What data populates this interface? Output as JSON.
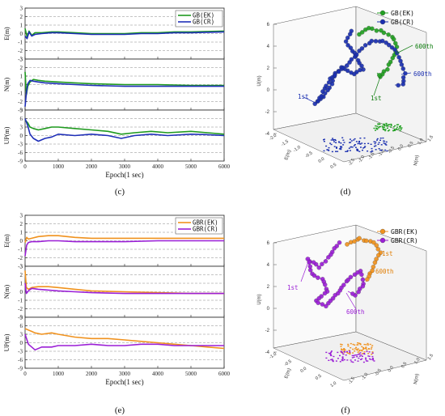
{
  "figure": {
    "panel_labels": [
      "(c)",
      "(d)",
      "(e)",
      "(f)"
    ]
  },
  "chart_data": [
    {
      "type": "line",
      "panel": "(c)",
      "xlabel": "Epoch(1 sec)",
      "x_ticks": [
        0,
        1000,
        2000,
        3000,
        4000,
        5000,
        6000
      ],
      "xlim": [
        0,
        6000
      ],
      "grid": "dashed horizontal",
      "legend": "top-right",
      "series_names": [
        "GB(EK)",
        "GB(CR)"
      ],
      "series_colors": [
        "#1f9a1f",
        "#1f2fb8"
      ],
      "subplots": [
        {
          "ylabel": "E(m)",
          "ylim": [
            -3,
            3
          ],
          "y_ticks": [
            "3",
            "2",
            "1",
            "0",
            "-1",
            "-2",
            "-3"
          ],
          "series": [
            {
              "name": "GB(EK)",
              "x": [
                0,
                60,
                120,
                200,
                300,
                500,
                800,
                1000,
                1500,
                2000,
                2500,
                3000,
                3500,
                4000,
                4500,
                5000,
                5500,
                6000
              ],
              "values": [
                0.6,
                -0.4,
                0.3,
                -0.2,
                0.1,
                0.1,
                0.2,
                0.2,
                0.1,
                0.0,
                0.0,
                0.0,
                0.1,
                0.1,
                0.2,
                0.2,
                0.25,
                0.3
              ]
            },
            {
              "name": "GB(CR)",
              "x": [
                0,
                60,
                120,
                200,
                300,
                500,
                800,
                1000,
                1500,
                2000,
                2500,
                3000,
                3500,
                4000,
                4500,
                5000,
                5500,
                6000
              ],
              "values": [
                -0.3,
                -0.6,
                0.2,
                -0.3,
                -0.1,
                0.0,
                0.1,
                0.1,
                0.0,
                -0.1,
                -0.1,
                -0.1,
                0.0,
                0.0,
                0.1,
                0.1,
                0.15,
                0.2
              ]
            }
          ]
        },
        {
          "ylabel": "N(m)",
          "ylim": [
            -3,
            3
          ],
          "y_ticks": [
            "3",
            "2",
            "1",
            "0",
            "-1",
            "-2",
            "-3"
          ],
          "series": [
            {
              "name": "GB(EK)",
              "x": [
                0,
                40,
                80,
                150,
                250,
                400,
                600,
                1000,
                1500,
                2000,
                3000,
                4000,
                5000,
                6000
              ],
              "values": [
                1.5,
                -1.2,
                -0.2,
                0.3,
                0.6,
                0.5,
                0.4,
                0.3,
                0.2,
                0.1,
                0.0,
                0.0,
                -0.1,
                -0.1
              ]
            },
            {
              "name": "GB(CR)",
              "x": [
                0,
                40,
                80,
                150,
                250,
                400,
                600,
                1000,
                1500,
                2000,
                3000,
                4000,
                5000,
                6000
              ],
              "values": [
                -2.6,
                -1.0,
                0.1,
                0.5,
                0.4,
                0.3,
                0.2,
                0.1,
                0.0,
                -0.1,
                -0.2,
                -0.2,
                -0.2,
                -0.2
              ]
            }
          ]
        },
        {
          "ylabel": "UP(m)",
          "ylim": [
            -9,
            9
          ],
          "y_ticks": [
            "9",
            "6",
            "3",
            "0",
            "-3",
            "-6",
            "-9"
          ],
          "series": [
            {
              "name": "GB(EK)",
              "x": [
                0,
                80,
                150,
                250,
                400,
                600,
                800,
                1000,
                1500,
                2000,
                2500,
                2900,
                3300,
                3800,
                4300,
                5000,
                5500,
                6000
              ],
              "values": [
                5.5,
                4.5,
                3.0,
                2.5,
                2.0,
                2.5,
                3.0,
                3.0,
                2.5,
                2.0,
                1.5,
                0.5,
                1.0,
                1.5,
                1.0,
                1.5,
                1.0,
                0.5
              ]
            },
            {
              "name": "GB(CR)",
              "x": [
                0,
                80,
                150,
                250,
                400,
                600,
                800,
                1000,
                1500,
                2000,
                2500,
                2900,
                3300,
                3800,
                4300,
                5000,
                5500,
                6000
              ],
              "values": [
                6.0,
                3.5,
                0.5,
                -1.0,
                -2.0,
                -1.0,
                -0.5,
                0.5,
                0.0,
                0.5,
                0.0,
                -1.0,
                0.0,
                0.5,
                0.0,
                0.5,
                0.3,
                0.0
              ]
            }
          ]
        }
      ]
    },
    {
      "type": "scatter",
      "panel": "(d)",
      "dimensions": 3,
      "axis_labels": {
        "z": "U(m)",
        "x": "E(m)",
        "y": "N(m)"
      },
      "z_ticks": [
        "6",
        "4",
        "2",
        "0",
        "-2",
        "-4"
      ],
      "x_ticks": [
        "-2.0",
        "-1.5",
        "-1.0",
        "-0.5",
        "0.0",
        "0.5"
      ],
      "y_ticks": [
        "-2.5",
        "-2.0",
        "-1.5",
        "-1.0",
        "-0.5",
        "0.0",
        "0.5",
        "1.0",
        "1.5"
      ],
      "legend": "top-right",
      "series_names": [
        "GB(EK)",
        "GB(CR)"
      ],
      "series_colors": [
        "#22a022",
        "#1a2fb0"
      ],
      "annotations": [
        {
          "text": "600th",
          "color": "#0a7a0a"
        },
        {
          "text": "600th",
          "color": "#1a2fb0"
        },
        {
          "text": "1st",
          "color": "#0a7a0a"
        },
        {
          "text": "1st",
          "color": "#1a2fb0"
        }
      ]
    },
    {
      "type": "line",
      "panel": "(e)",
      "xlabel": "Epoch(1 sec)",
      "x_ticks": [
        0,
        1000,
        2000,
        3000,
        4000,
        5000,
        6000
      ],
      "xlim": [
        0,
        6000
      ],
      "grid": "dashed horizontal",
      "legend": "top-right",
      "series_names": [
        "GBR(EK)",
        "GBR(CR)"
      ],
      "series_colors": [
        "#f0921e",
        "#9b1fd6"
      ],
      "subplots": [
        {
          "ylabel": "E(m)",
          "ylim": [
            -3,
            3
          ],
          "y_ticks": [
            "3",
            "2",
            "1",
            "0",
            "-1",
            "-2",
            "-3"
          ],
          "series": [
            {
              "name": "GBR(EK)",
              "x": [
                0,
                50,
                100,
                200,
                400,
                700,
                1000,
                1500,
                2000,
                3000,
                4000,
                5000,
                6000
              ],
              "values": [
                -0.2,
                0.4,
                0.2,
                0.3,
                0.5,
                0.6,
                0.6,
                0.4,
                0.3,
                0.3,
                0.3,
                0.3,
                0.3
              ]
            },
            {
              "name": "GBR(CR)",
              "x": [
                0,
                50,
                100,
                200,
                400,
                700,
                1000,
                1500,
                2000,
                3000,
                4000,
                5000,
                6000
              ],
              "values": [
                -1.8,
                -0.5,
                -0.2,
                -0.1,
                -0.1,
                0.0,
                0.0,
                -0.1,
                -0.1,
                -0.1,
                0.0,
                0.0,
                0.0
              ]
            }
          ]
        },
        {
          "ylabel": "N(m)",
          "ylim": [
            -3,
            3
          ],
          "y_ticks": [
            "3",
            "2",
            "1",
            "0",
            "-1",
            "-2",
            "-3"
          ],
          "series": [
            {
              "name": "GBR(EK)",
              "x": [
                0,
                40,
                100,
                200,
                400,
                700,
                1000,
                1500,
                2000,
                3000,
                4000,
                5000,
                6000
              ],
              "values": [
                2.5,
                0.5,
                0.3,
                0.5,
                0.6,
                0.6,
                0.5,
                0.3,
                0.1,
                0.0,
                -0.1,
                -0.2,
                -0.2
              ]
            },
            {
              "name": "GBR(CR)",
              "x": [
                0,
                40,
                100,
                200,
                400,
                700,
                1000,
                1500,
                2000,
                3000,
                4000,
                5000,
                6000
              ],
              "values": [
                1.0,
                -0.2,
                0.1,
                0.4,
                0.3,
                0.2,
                0.1,
                0.0,
                -0.1,
                -0.2,
                -0.2,
                -0.2,
                -0.2
              ]
            }
          ]
        },
        {
          "ylabel": "UP(m)",
          "ylim": [
            -9,
            9
          ],
          "y_ticks": [
            "9",
            "6",
            "3",
            "0",
            "-3",
            "-6",
            "-9"
          ],
          "series": [
            {
              "name": "GBR(EK)",
              "x": [
                0,
                100,
                200,
                300,
                500,
                800,
                1000,
                1500,
                2000,
                2500,
                3000,
                3500,
                4000,
                4500,
                5000,
                5500,
                6000
              ],
              "values": [
                5.0,
                4.5,
                4.0,
                3.5,
                3.0,
                3.5,
                3.0,
                2.0,
                1.5,
                1.5,
                1.0,
                0.5,
                0.0,
                -0.5,
                -1.0,
                -1.5,
                -2.0
              ]
            },
            {
              "name": "GBR(CR)",
              "x": [
                0,
                100,
                200,
                300,
                500,
                800,
                1000,
                1500,
                2000,
                2500,
                3000,
                3500,
                4000,
                4500,
                5000,
                5500,
                6000
              ],
              "values": [
                3.0,
                -0.5,
                -1.5,
                -2.5,
                -1.5,
                -1.5,
                -1.0,
                -1.0,
                -0.5,
                -1.0,
                -1.0,
                -0.5,
                -0.5,
                -1.0,
                -1.0,
                -1.0,
                -1.0
              ]
            }
          ]
        }
      ]
    },
    {
      "type": "scatter",
      "panel": "(f)",
      "dimensions": 3,
      "axis_labels": {
        "z": "U(m)",
        "x": "E(m)",
        "y": "N(m)"
      },
      "z_ticks": [
        "6",
        "4",
        "2",
        "0",
        "-2",
        "-4"
      ],
      "x_ticks": [
        "-1.0",
        "-0.5",
        "0.0",
        "0.5",
        "1.0"
      ],
      "y_ticks": [
        "-1.5",
        "-1.0",
        "-0.5",
        "0.0",
        "0.5",
        "1.0",
        "1.5"
      ],
      "legend": "top-right",
      "series_names": [
        "GBR(EK)",
        "GBR(CR)"
      ],
      "series_colors": [
        "#f0921e",
        "#9b1fd6"
      ],
      "annotations": [
        {
          "text": "1st",
          "color": "#e07c00"
        },
        {
          "text": "600th",
          "color": "#e07c00"
        },
        {
          "text": "1st",
          "color": "#9b1fd6"
        },
        {
          "text": "600th",
          "color": "#9b1fd6"
        }
      ]
    }
  ]
}
